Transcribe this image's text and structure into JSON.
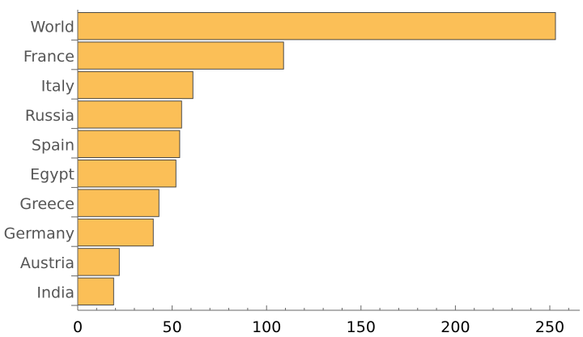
{
  "chart_data": {
    "type": "bar",
    "orientation": "horizontal",
    "categories": [
      "World",
      "France",
      "Italy",
      "Russia",
      "Spain",
      "Egypt",
      "Greece",
      "Germany",
      "Austria",
      "India"
    ],
    "values": [
      253,
      109,
      61,
      55,
      54,
      52,
      43,
      40,
      22,
      19
    ],
    "x_ticks": [
      0,
      50,
      100,
      150,
      200,
      250
    ],
    "xlim": [
      0,
      265
    ],
    "grid": false,
    "legend": "none",
    "colors": {
      "bar_fill": "#fbbf57",
      "bar_stroke": "#3a3a3a",
      "axis": "#666666",
      "category_text": "#555555"
    }
  }
}
